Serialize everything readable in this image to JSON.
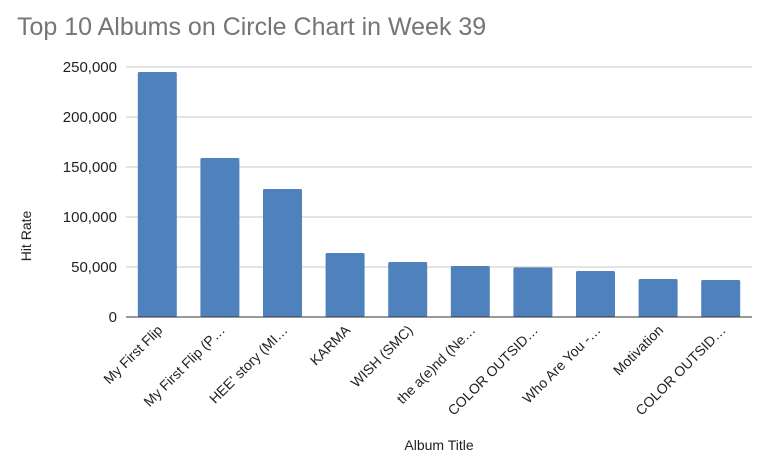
{
  "chart_data": {
    "type": "bar",
    "title": "Top 10 Albums on Circle Chart in Week 39",
    "xlabel": "Album Title",
    "ylabel": "Hit Rate",
    "ylim": [
      0,
      250000
    ],
    "yticks": [
      "0",
      "50,000",
      "100,000",
      "150,000",
      "200,000",
      "250,000"
    ],
    "ytick_values": [
      0,
      50000,
      100000,
      150000,
      200000,
      250000
    ],
    "categories": [
      "My First Flip",
      "My First Flip (P…",
      "HEE' story (MI…",
      "KARMA",
      "WISH (SMC)",
      "the a(e)nd (Ne…",
      "COLOR OUTSID…",
      "Who Are You -…",
      "Motivation",
      "COLOR OUTSID…"
    ],
    "values": [
      245000,
      159000,
      128000,
      64000,
      55000,
      51000,
      49500,
      46000,
      38000,
      37000
    ],
    "grid": true,
    "legend": "none",
    "bar_color": "#4f81bd"
  }
}
